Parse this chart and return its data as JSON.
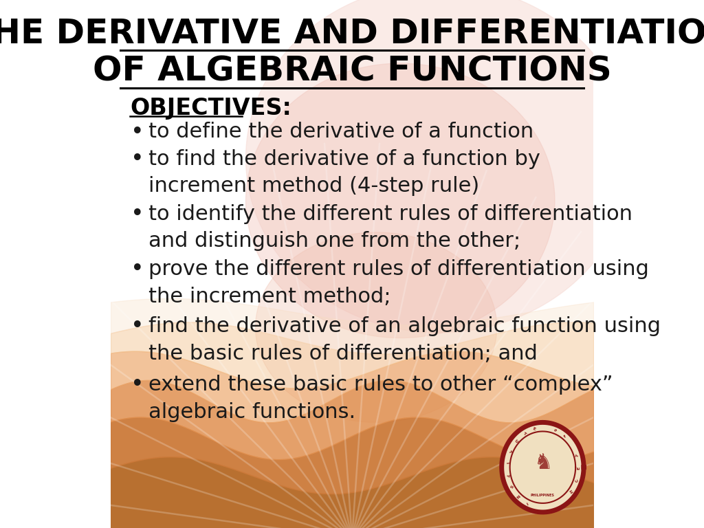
{
  "title_line1": "THE DERIVATIVE AND DIFFERENTIATION",
  "title_line2": "OF ALGEBRAIC FUNCTIONS",
  "objectives_label": "OBJECTIVES:",
  "bullet_points": [
    [
      "to define the derivative of a function",
      ""
    ],
    [
      "to find the derivative of a function by",
      "increment method (4-step rule)"
    ],
    [
      "to identify the different rules of differentiation",
      "and distinguish one from the other;"
    ],
    [
      "prove the different rules of differentiation using",
      "the increment method;"
    ],
    [
      "find the derivative of an algebraic function using",
      "the basic rules of differentiation; and"
    ],
    [
      "extend these basic rules to other “complex”",
      "algebraic functions."
    ]
  ],
  "bg_color": "#ffffff",
  "title_color": "#000000",
  "text_color": "#1a1a1a",
  "objectives_color": "#000000",
  "title_fontsize": 36,
  "body_fontsize": 22,
  "objectives_fontsize": 24,
  "bullet_items": [
    [
      0.75,
      0.75,
      null
    ],
    [
      0.698,
      0.698,
      0.648
    ],
    [
      0.594,
      0.594,
      0.544
    ],
    [
      0.49,
      0.49,
      0.438
    ],
    [
      0.382,
      0.382,
      0.33
    ],
    [
      0.272,
      0.272,
      0.22
    ]
  ]
}
